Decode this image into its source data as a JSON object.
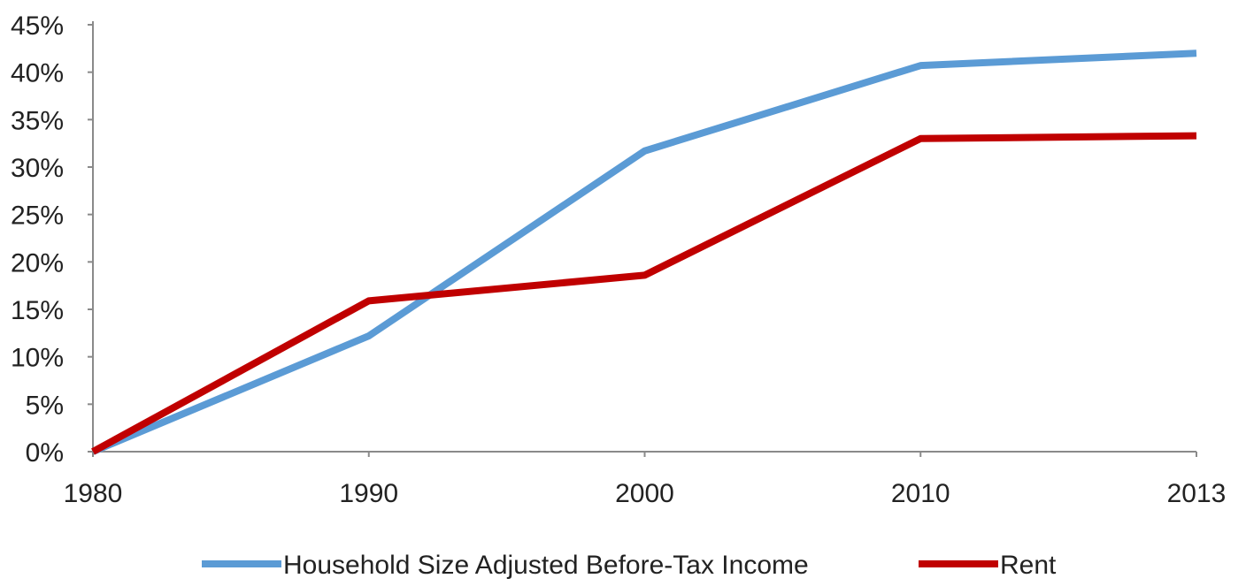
{
  "chart_data": {
    "type": "line",
    "x": [
      "1980",
      "1990",
      "2000",
      "2010",
      "2013"
    ],
    "y_ticks": [
      "0%",
      "5%",
      "10%",
      "15%",
      "20%",
      "25%",
      "30%",
      "35%",
      "40%",
      "45%"
    ],
    "ylim": [
      0,
      45
    ],
    "y_unit": "%",
    "grid": false,
    "legend_position": "bottom",
    "series": [
      {
        "name": "Household Size Adjusted Before-Tax Income",
        "values": [
          0,
          12.2,
          31.7,
          40.7,
          42.0
        ],
        "color": "#5B9BD5"
      },
      {
        "name": "Rent",
        "values": [
          0,
          15.9,
          18.6,
          33.0,
          33.3
        ],
        "color": "#C00000"
      }
    ]
  }
}
